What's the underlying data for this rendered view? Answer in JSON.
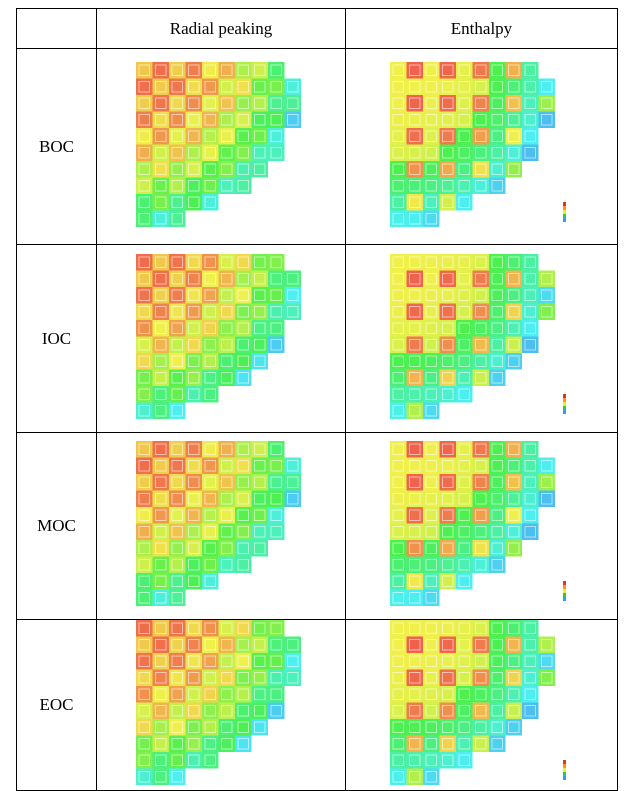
{
  "table": {
    "columns": [
      "Radial peaking",
      "Enthalpy"
    ],
    "rows": [
      "BOC",
      "IOC",
      "MOC",
      "EOC"
    ]
  }
}
